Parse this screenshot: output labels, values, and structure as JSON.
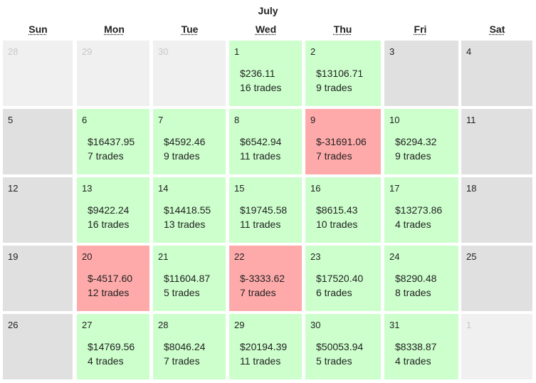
{
  "calendar": {
    "month": "July",
    "weekdays": [
      "Sun",
      "Mon",
      "Tue",
      "Wed",
      "Thu",
      "Fri",
      "Sat"
    ],
    "colors": {
      "profit": "#ccffcc",
      "loss": "#ffaaaa",
      "weekend": "#e0e0e0",
      "outside_month": "#f0f0f0"
    },
    "weeks": [
      [
        {
          "day": "28",
          "type": "outside"
        },
        {
          "day": "29",
          "type": "outside"
        },
        {
          "day": "30",
          "type": "outside"
        },
        {
          "day": "1",
          "type": "profit",
          "pnl": "$236.11",
          "trades": "16 trades"
        },
        {
          "day": "2",
          "type": "profit",
          "pnl": "$13106.71",
          "trades": "9 trades"
        },
        {
          "day": "3",
          "type": "weekend"
        },
        {
          "day": "4",
          "type": "weekend"
        }
      ],
      [
        {
          "day": "5",
          "type": "weekend"
        },
        {
          "day": "6",
          "type": "profit",
          "pnl": "$16437.95",
          "trades": "7 trades"
        },
        {
          "day": "7",
          "type": "profit",
          "pnl": "$4592.46",
          "trades": "9 trades"
        },
        {
          "day": "8",
          "type": "profit",
          "pnl": "$6542.94",
          "trades": "11 trades"
        },
        {
          "day": "9",
          "type": "loss",
          "pnl": "$-31691.06",
          "trades": "7 trades"
        },
        {
          "day": "10",
          "type": "profit",
          "pnl": "$6294.32",
          "trades": "9 trades"
        },
        {
          "day": "11",
          "type": "weekend"
        }
      ],
      [
        {
          "day": "12",
          "type": "weekend"
        },
        {
          "day": "13",
          "type": "profit",
          "pnl": "$9422.24",
          "trades": "16 trades"
        },
        {
          "day": "14",
          "type": "profit",
          "pnl": "$14418.55",
          "trades": "13 trades"
        },
        {
          "day": "15",
          "type": "profit",
          "pnl": "$19745.58",
          "trades": "11 trades"
        },
        {
          "day": "16",
          "type": "profit",
          "pnl": "$8615.43",
          "trades": "10 trades"
        },
        {
          "day": "17",
          "type": "profit",
          "pnl": "$13273.86",
          "trades": "4 trades"
        },
        {
          "day": "18",
          "type": "weekend"
        }
      ],
      [
        {
          "day": "19",
          "type": "weekend"
        },
        {
          "day": "20",
          "type": "loss",
          "pnl": "$-4517.60",
          "trades": "12 trades"
        },
        {
          "day": "21",
          "type": "profit",
          "pnl": "$11604.87",
          "trades": "5 trades"
        },
        {
          "day": "22",
          "type": "loss",
          "pnl": "$-3333.62",
          "trades": "7 trades"
        },
        {
          "day": "23",
          "type": "profit",
          "pnl": "$17520.40",
          "trades": "6 trades"
        },
        {
          "day": "24",
          "type": "profit",
          "pnl": "$8290.48",
          "trades": "8 trades"
        },
        {
          "day": "25",
          "type": "weekend"
        }
      ],
      [
        {
          "day": "26",
          "type": "weekend"
        },
        {
          "day": "27",
          "type": "profit",
          "pnl": "$14769.56",
          "trades": "4 trades"
        },
        {
          "day": "28",
          "type": "profit",
          "pnl": "$8046.24",
          "trades": "7 trades"
        },
        {
          "day": "29",
          "type": "profit",
          "pnl": "$20194.39",
          "trades": "11 trades"
        },
        {
          "day": "30",
          "type": "profit",
          "pnl": "$50053.94",
          "trades": "5 trades"
        },
        {
          "day": "31",
          "type": "profit",
          "pnl": "$8338.87",
          "trades": "4 trades"
        },
        {
          "day": "1",
          "type": "outside"
        }
      ]
    ]
  }
}
